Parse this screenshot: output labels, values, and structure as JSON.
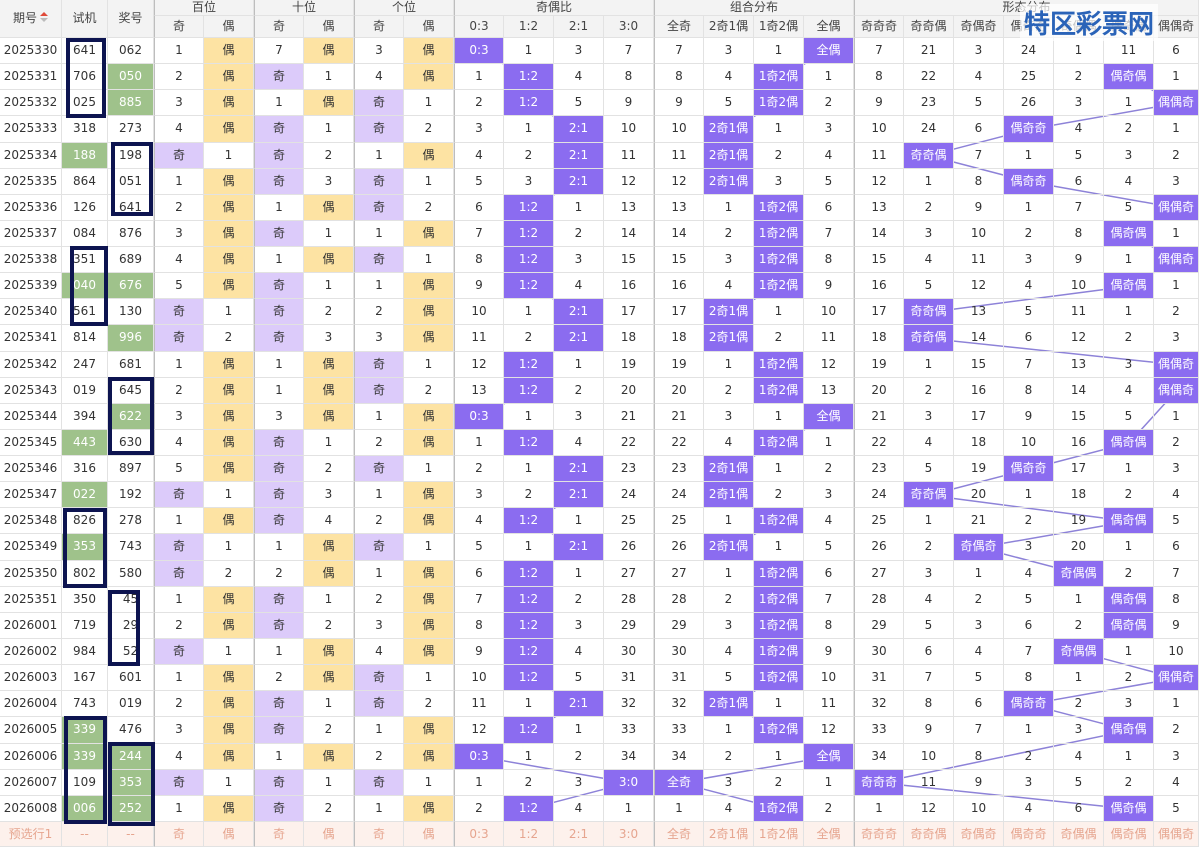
{
  "header": {
    "issue": "期号",
    "test": "试机",
    "prize": "奖号",
    "groups": [
      "百位",
      "十位",
      "个位",
      "奇偶比",
      "组合分布",
      "形态分布"
    ],
    "subheaders": [
      "奇",
      "偶",
      "奇",
      "偶",
      "奇",
      "偶",
      "0:3",
      "1:2",
      "2:1",
      "3:0",
      "全奇",
      "2奇1偶",
      "1奇2偶",
      "全偶",
      "奇奇奇",
      "奇奇偶",
      "奇偶奇",
      "偶奇奇",
      "奇偶偶",
      "偶奇偶",
      "偶偶奇"
    ]
  },
  "rows": [
    {
      "issue": "2025330",
      "test": "641",
      "prize": "062",
      "test_hl": false,
      "prize_hl": false,
      "cells": [
        1,
        "偶",
        7,
        "偶",
        3,
        "偶",
        "0:3",
        1,
        3,
        7,
        7,
        3,
        1,
        "全偶",
        7,
        21,
        3,
        24,
        1,
        11,
        6
      ]
    },
    {
      "issue": "2025331",
      "test": "706",
      "prize": "050",
      "test_hl": false,
      "prize_hl": true,
      "cells": [
        2,
        "偶",
        "奇",
        1,
        4,
        "偶",
        1,
        "1:2",
        4,
        8,
        8,
        4,
        "1奇2偶",
        1,
        8,
        22,
        4,
        25,
        2,
        "偶奇偶",
        1
      ]
    },
    {
      "issue": "2025332",
      "test": "025",
      "prize": "885",
      "test_hl": false,
      "prize_hl": true,
      "cells": [
        3,
        "偶",
        1,
        "偶",
        "奇",
        1,
        2,
        "1:2",
        5,
        9,
        9,
        5,
        "1奇2偶",
        2,
        9,
        23,
        5,
        26,
        3,
        1,
        "偶偶奇"
      ]
    },
    {
      "issue": "2025333",
      "test": "318",
      "prize": "273",
      "test_hl": false,
      "prize_hl": false,
      "cells": [
        4,
        "偶",
        "奇",
        1,
        "奇",
        2,
        3,
        1,
        "2:1",
        10,
        10,
        "2奇1偶",
        1,
        3,
        10,
        24,
        6,
        "偶奇奇",
        4,
        2,
        1
      ]
    },
    {
      "issue": "2025334",
      "test": "188",
      "prize": "198",
      "test_hl": true,
      "prize_hl": false,
      "cells": [
        "奇",
        1,
        "奇",
        2,
        1,
        "偶",
        4,
        2,
        "2:1",
        11,
        11,
        "2奇1偶",
        2,
        4,
        11,
        "奇奇偶",
        7,
        1,
        5,
        3,
        2
      ]
    },
    {
      "issue": "2025335",
      "test": "864",
      "prize": "051",
      "test_hl": false,
      "prize_hl": false,
      "cells": [
        1,
        "偶",
        "奇",
        3,
        "奇",
        1,
        5,
        3,
        "2:1",
        12,
        12,
        "2奇1偶",
        3,
        5,
        12,
        1,
        8,
        "偶奇奇",
        6,
        4,
        3
      ]
    },
    {
      "issue": "2025336",
      "test": "126",
      "prize": "641",
      "test_hl": false,
      "prize_hl": false,
      "cells": [
        2,
        "偶",
        1,
        "偶",
        "奇",
        2,
        6,
        "1:2",
        1,
        13,
        13,
        1,
        "1奇2偶",
        6,
        13,
        2,
        9,
        1,
        7,
        5,
        "偶偶奇"
      ]
    },
    {
      "issue": "2025337",
      "test": "084",
      "prize": "876",
      "test_hl": false,
      "prize_hl": false,
      "cells": [
        3,
        "偶",
        "奇",
        1,
        1,
        "偶",
        7,
        "1:2",
        2,
        14,
        14,
        2,
        "1奇2偶",
        7,
        14,
        3,
        10,
        2,
        8,
        "偶奇偶",
        1
      ]
    },
    {
      "issue": "2025338",
      "test": "351",
      "prize": "689",
      "test_hl": false,
      "prize_hl": false,
      "cells": [
        4,
        "偶",
        1,
        "偶",
        "奇",
        1,
        8,
        "1:2",
        3,
        15,
        15,
        3,
        "1奇2偶",
        8,
        15,
        4,
        11,
        3,
        9,
        1,
        "偶偶奇"
      ]
    },
    {
      "issue": "2025339",
      "test": "040",
      "prize": "676",
      "test_hl": true,
      "prize_hl": true,
      "cells": [
        5,
        "偶",
        "奇",
        1,
        1,
        "偶",
        9,
        "1:2",
        4,
        16,
        16,
        4,
        "1奇2偶",
        9,
        16,
        5,
        12,
        4,
        10,
        "偶奇偶",
        1
      ]
    },
    {
      "issue": "2025340",
      "test": "561",
      "prize": "130",
      "test_hl": false,
      "prize_hl": false,
      "cells": [
        "奇",
        1,
        "奇",
        2,
        2,
        "偶",
        10,
        1,
        "2:1",
        17,
        17,
        "2奇1偶",
        1,
        10,
        17,
        "奇奇偶",
        13,
        5,
        11,
        1,
        2
      ]
    },
    {
      "issue": "2025341",
      "test": "814",
      "prize": "996",
      "test_hl": false,
      "prize_hl": true,
      "cells": [
        "奇",
        2,
        "奇",
        3,
        3,
        "偶",
        11,
        2,
        "2:1",
        18,
        18,
        "2奇1偶",
        2,
        11,
        18,
        "奇奇偶",
        14,
        6,
        12,
        2,
        3
      ]
    },
    {
      "issue": "2025342",
      "test": "247",
      "prize": "681",
      "test_hl": false,
      "prize_hl": false,
      "cells": [
        1,
        "偶",
        1,
        "偶",
        "奇",
        1,
        12,
        "1:2",
        1,
        19,
        19,
        1,
        "1奇2偶",
        12,
        19,
        1,
        15,
        7,
        13,
        3,
        "偶偶奇"
      ]
    },
    {
      "issue": "2025343",
      "test": "019",
      "prize": "645",
      "test_hl": false,
      "prize_hl": false,
      "cells": [
        2,
        "偶",
        1,
        "偶",
        "奇",
        2,
        13,
        "1:2",
        2,
        20,
        20,
        2,
        "1奇2偶",
        13,
        20,
        2,
        16,
        8,
        14,
        4,
        "偶偶奇"
      ]
    },
    {
      "issue": "2025344",
      "test": "394",
      "prize": "622",
      "test_hl": false,
      "prize_hl": true,
      "cells": [
        3,
        "偶",
        3,
        "偶",
        1,
        "偶",
        "0:3",
        1,
        3,
        21,
        21,
        3,
        1,
        "全偶",
        21,
        3,
        17,
        9,
        15,
        5,
        1
      ]
    },
    {
      "issue": "2025345",
      "test": "443",
      "prize": "630",
      "test_hl": true,
      "prize_hl": false,
      "cells": [
        4,
        "偶",
        "奇",
        1,
        2,
        "偶",
        1,
        "1:2",
        4,
        22,
        22,
        4,
        "1奇2偶",
        1,
        22,
        4,
        18,
        10,
        16,
        "偶奇偶",
        2
      ]
    },
    {
      "issue": "2025346",
      "test": "316",
      "prize": "897",
      "test_hl": false,
      "prize_hl": false,
      "cells": [
        5,
        "偶",
        "奇",
        2,
        "奇",
        1,
        2,
        1,
        "2:1",
        23,
        23,
        "2奇1偶",
        1,
        2,
        23,
        5,
        19,
        "偶奇奇",
        17,
        1,
        3
      ]
    },
    {
      "issue": "2025347",
      "test": "022",
      "prize": "192",
      "test_hl": true,
      "prize_hl": false,
      "cells": [
        "奇",
        1,
        "奇",
        3,
        1,
        "偶",
        3,
        2,
        "2:1",
        24,
        24,
        "2奇1偶",
        2,
        3,
        24,
        "奇奇偶",
        20,
        1,
        18,
        2,
        4
      ]
    },
    {
      "issue": "2025348",
      "test": "826",
      "prize": "278",
      "test_hl": false,
      "prize_hl": false,
      "cells": [
        1,
        "偶",
        "奇",
        4,
        2,
        "偶",
        4,
        "1:2",
        1,
        25,
        25,
        1,
        "1奇2偶",
        4,
        25,
        1,
        21,
        2,
        19,
        "偶奇偶",
        5
      ]
    },
    {
      "issue": "2025349",
      "test": "353",
      "prize": "743",
      "test_hl": true,
      "prize_hl": false,
      "cells": [
        "奇",
        1,
        1,
        "偶",
        "奇",
        1,
        5,
        1,
        "2:1",
        26,
        26,
        "2奇1偶",
        1,
        5,
        26,
        2,
        "奇偶奇",
        3,
        20,
        1,
        6
      ]
    },
    {
      "issue": "2025350",
      "test": "802",
      "prize": "580",
      "test_hl": false,
      "prize_hl": false,
      "cells": [
        "奇",
        2,
        2,
        "偶",
        1,
        "偶",
        6,
        "1:2",
        1,
        27,
        27,
        1,
        "1奇2偶",
        6,
        27,
        3,
        1,
        4,
        "奇偶偶",
        2,
        7
      ]
    },
    {
      "issue": "2025351",
      "test": "350",
      "prize": "45",
      "test_hl": false,
      "prize_hl": false,
      "cells": [
        1,
        "偶",
        "奇",
        1,
        2,
        "偶",
        7,
        "1:2",
        2,
        28,
        28,
        2,
        "1奇2偶",
        7,
        28,
        4,
        2,
        5,
        1,
        "偶奇偶",
        8
      ]
    },
    {
      "issue": "2026001",
      "test": "719",
      "prize": "29",
      "test_hl": false,
      "prize_hl": false,
      "cells": [
        2,
        "偶",
        "奇",
        2,
        3,
        "偶",
        8,
        "1:2",
        3,
        29,
        29,
        3,
        "1奇2偶",
        8,
        29,
        5,
        3,
        6,
        2,
        "偶奇偶",
        9
      ]
    },
    {
      "issue": "2026002",
      "test": "984",
      "prize": "52",
      "test_hl": false,
      "prize_hl": false,
      "cells": [
        "奇",
        1,
        1,
        "偶",
        4,
        "偶",
        9,
        "1:2",
        4,
        30,
        30,
        4,
        "1奇2偶",
        9,
        30,
        6,
        4,
        7,
        "奇偶偶",
        1,
        10
      ]
    },
    {
      "issue": "2026003",
      "test": "167",
      "prize": "601",
      "test_hl": false,
      "prize_hl": false,
      "cells": [
        1,
        "偶",
        2,
        "偶",
        "奇",
        1,
        10,
        "1:2",
        5,
        31,
        31,
        5,
        "1奇2偶",
        10,
        31,
        7,
        5,
        8,
        1,
        2,
        "偶偶奇"
      ]
    },
    {
      "issue": "2026004",
      "test": "743",
      "prize": "019",
      "test_hl": false,
      "prize_hl": false,
      "cells": [
        2,
        "偶",
        "奇",
        1,
        "奇",
        2,
        11,
        1,
        "2:1",
        32,
        32,
        "2奇1偶",
        1,
        11,
        32,
        8,
        6,
        "偶奇奇",
        2,
        3,
        1
      ]
    },
    {
      "issue": "2026005",
      "test": "339",
      "prize": "476",
      "test_hl": true,
      "prize_hl": false,
      "cells": [
        3,
        "偶",
        "奇",
        2,
        1,
        "偶",
        12,
        "1:2",
        1,
        33,
        33,
        1,
        "1奇2偶",
        12,
        33,
        9,
        7,
        1,
        3,
        "偶奇偶",
        2
      ]
    },
    {
      "issue": "2026006",
      "test": "339",
      "prize": "244",
      "test_hl": true,
      "prize_hl": true,
      "cells": [
        4,
        "偶",
        1,
        "偶",
        2,
        "偶",
        "0:3",
        1,
        2,
        34,
        34,
        2,
        1,
        "全偶",
        34,
        10,
        8,
        2,
        4,
        1,
        3
      ]
    },
    {
      "issue": "2026007",
      "test": "109",
      "prize": "353",
      "test_hl": false,
      "prize_hl": true,
      "cells": [
        "奇",
        1,
        "奇",
        1,
        "奇",
        1,
        1,
        2,
        3,
        "3:0",
        "全奇",
        3,
        2,
        1,
        "奇奇奇",
        11,
        9,
        3,
        5,
        2,
        4
      ]
    },
    {
      "issue": "2026008",
      "test": "006",
      "prize": "252",
      "test_hl": true,
      "prize_hl": true,
      "cells": [
        1,
        "偶",
        "奇",
        2,
        1,
        "偶",
        2,
        "1:2",
        4,
        1,
        1,
        4,
        "1奇2偶",
        2,
        1,
        12,
        10,
        4,
        6,
        "偶奇偶",
        5
      ]
    }
  ],
  "footer": {
    "label": "预选行1",
    "test": "--",
    "prize": "--",
    "cells": [
      "奇",
      "偶",
      "奇",
      "偶",
      "奇",
      "偶",
      "0:3",
      "1:2",
      "2:1",
      "3:0",
      "全奇",
      "2奇1偶",
      "1奇2偶",
      "全偶",
      "奇奇奇",
      "奇奇偶",
      "奇偶奇",
      "偶奇奇",
      "奇偶偶",
      "偶奇偶",
      "偶偶奇"
    ]
  },
  "watermark": "特区彩票网"
}
